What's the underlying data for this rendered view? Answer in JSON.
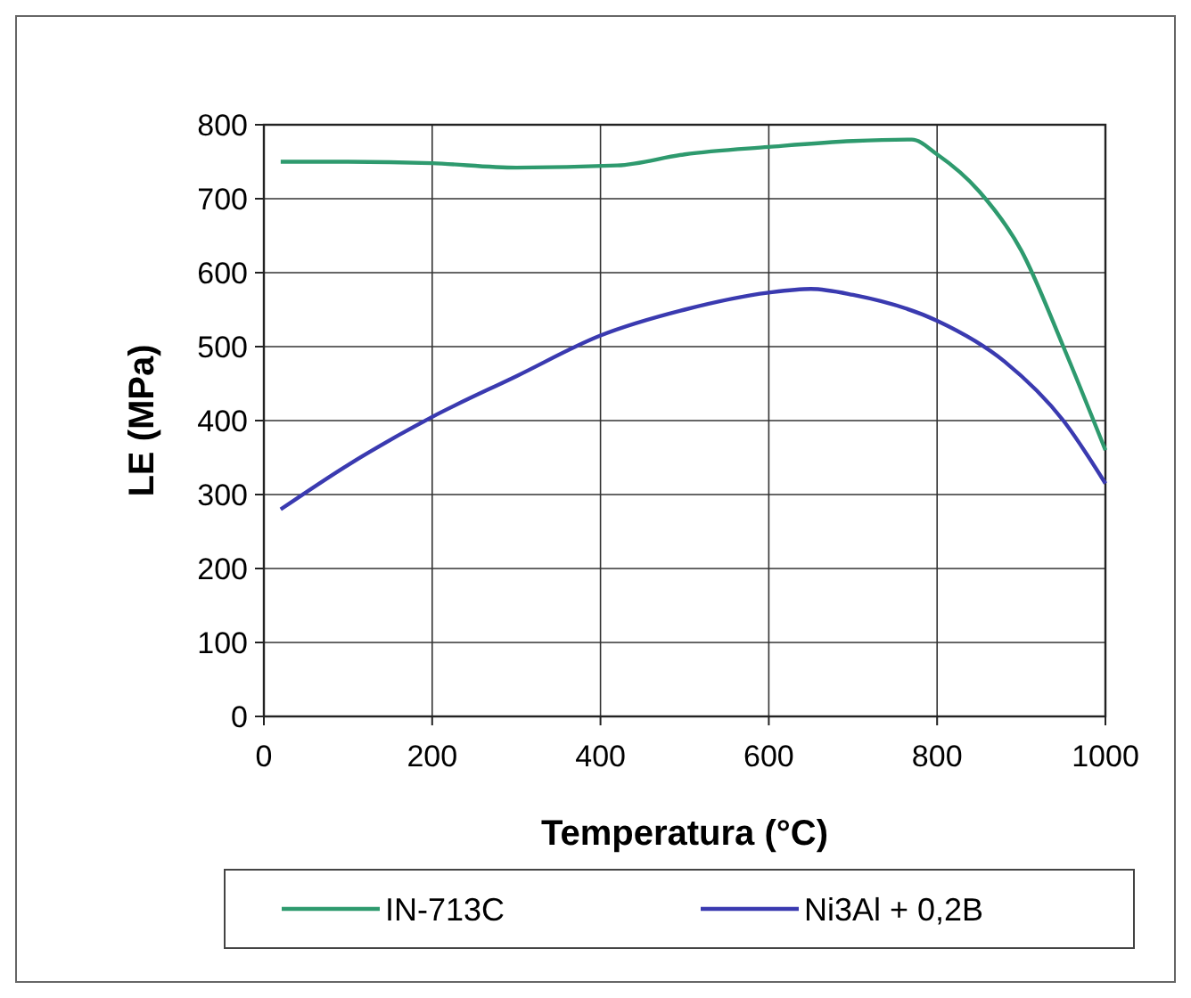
{
  "chart_data": {
    "type": "line",
    "xlabel": "Temperatura (°C)",
    "ylabel": "LE (MPa)",
    "xlim": [
      0,
      1000
    ],
    "ylim": [
      0,
      800
    ],
    "xticks": [
      0,
      200,
      400,
      600,
      800,
      1000
    ],
    "yticks": [
      0,
      100,
      200,
      300,
      400,
      500,
      600,
      700,
      800
    ],
    "grid": true,
    "legend": "bottom",
    "marker": "none",
    "line_style": "solid",
    "series": [
      {
        "name": "IN-713C",
        "color": "#2e9a6e",
        "x": [
          20,
          100,
          200,
          300,
          420,
          500,
          600,
          700,
          770,
          800,
          850,
          900,
          950,
          1000
        ],
        "values": [
          750,
          750,
          748,
          742,
          745,
          760,
          770,
          778,
          780,
          760,
          710,
          630,
          500,
          360
        ]
      },
      {
        "name": "Ni3Al + 0,2B",
        "color": "#3a3ab0",
        "x": [
          20,
          100,
          200,
          300,
          400,
          500,
          600,
          650,
          700,
          800,
          880,
          950,
          1000
        ],
        "values": [
          280,
          340,
          405,
          460,
          515,
          550,
          573,
          578,
          570,
          535,
          480,
          400,
          315
        ]
      }
    ]
  }
}
